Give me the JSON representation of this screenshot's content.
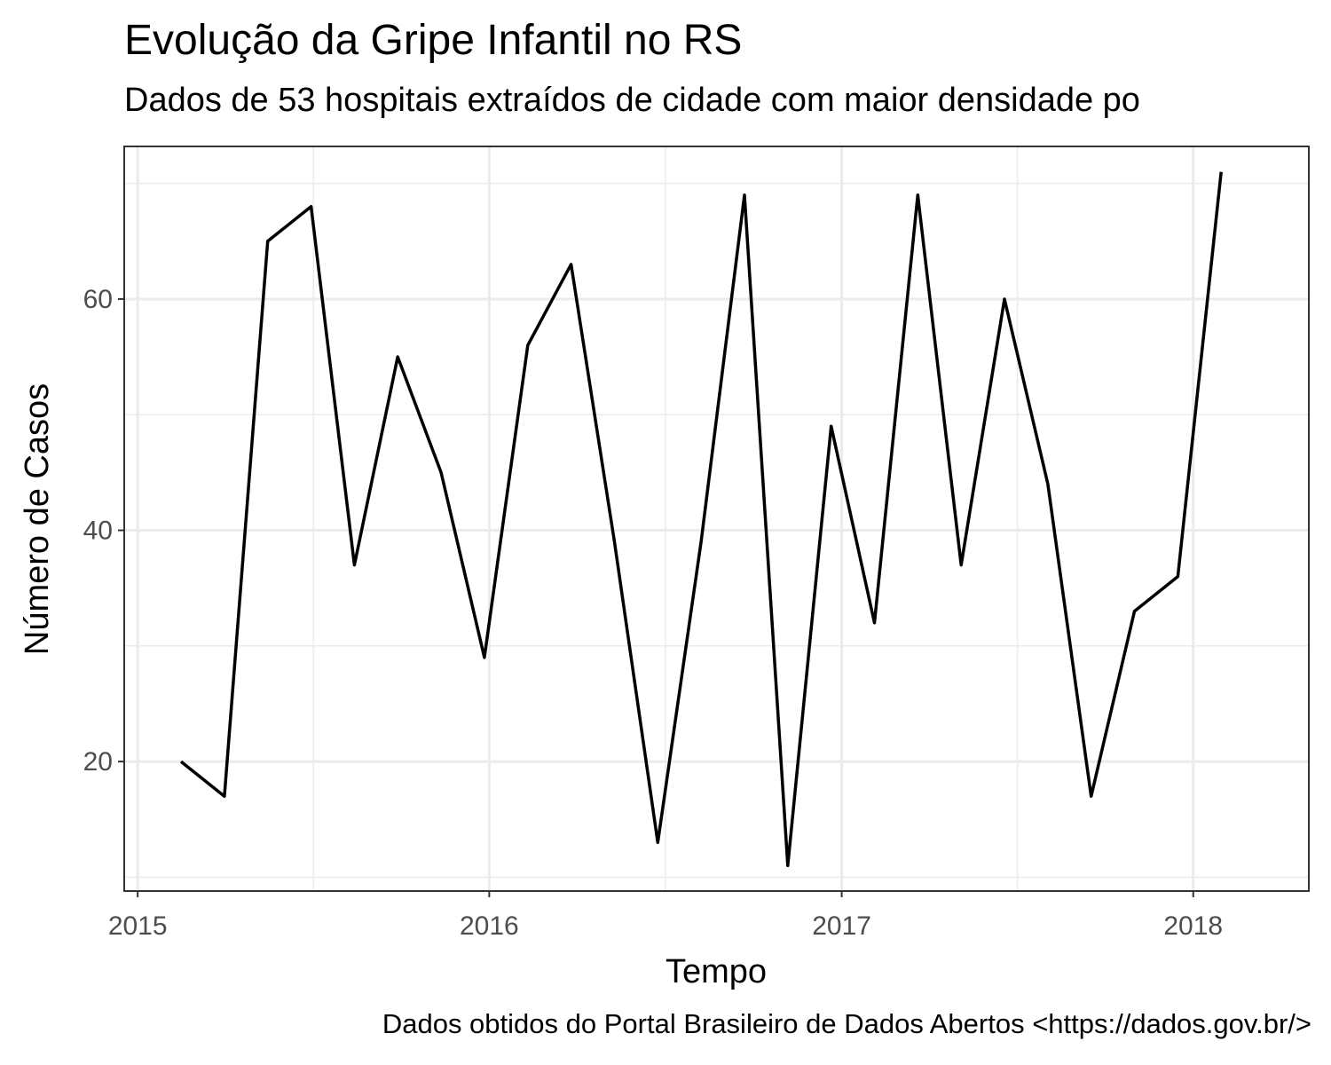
{
  "chart_data": {
    "type": "line",
    "title": "Evolução da Gripe Infantil no RS",
    "subtitle": "Dados de 53 hospitais extraídos de cidade com maior densidade po",
    "caption": "Dados obtidos do Portal Brasileiro de Dados Abertos <https://dados.gov.br/>",
    "xlabel": "Tempo",
    "ylabel": "Número de Casos",
    "x_ticks": [
      "2015",
      "2016",
      "2017",
      "2018"
    ],
    "y_ticks": [
      20,
      40,
      60
    ],
    "xlim": [
      "2014-12-18",
      "2018-05-01"
    ],
    "ylim": [
      8.8,
      73.2
    ],
    "grid": true,
    "legend": "none",
    "line_color": "#000000",
    "series": [
      {
        "x": [
          "2015-02-15",
          "2015-04-01",
          "2015-05-16",
          "2015-06-30",
          "2015-08-14",
          "2015-09-28",
          "2015-11-12",
          "2015-12-27",
          "2016-02-10",
          "2016-03-26",
          "2016-05-10",
          "2016-06-24",
          "2016-08-08",
          "2016-09-22",
          "2016-11-06",
          "2016-12-21",
          "2017-02-04",
          "2017-03-21",
          "2017-05-05",
          "2017-06-19",
          "2017-08-03",
          "2017-09-17",
          "2017-11-01",
          "2017-12-16",
          "2018-01-30"
        ],
        "values": [
          20,
          17,
          65,
          68,
          37,
          55,
          45,
          29,
          56,
          63,
          39,
          13,
          39,
          69,
          11,
          49,
          32,
          69,
          37,
          60,
          44,
          17,
          33,
          36,
          71
        ]
      }
    ]
  }
}
